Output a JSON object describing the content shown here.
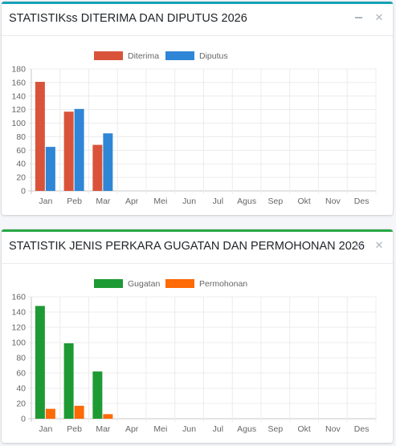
{
  "cards": [
    {
      "title": "STATISTIKss DITERIMA DAN DIPUTUS 2026",
      "accent": "#17a2b8",
      "tools": {
        "collapse_icon": "minus-icon",
        "remove_icon": "close-icon"
      }
    },
    {
      "title": "STATISTIK JENIS PERKARA GUGATAN DAN PERMOHONAN 2026",
      "accent": "#28a745",
      "tools": {
        "collapse_icon": "minus-icon",
        "remove_icon": "close-icon"
      }
    }
  ],
  "chart_data": [
    {
      "type": "bar",
      "title": "STATISTIKss DITERIMA DAN DIPUTUS 2026",
      "categories": [
        "Jan",
        "Peb",
        "Mar",
        "Apr",
        "Mei",
        "Jun",
        "Jul",
        "Agus",
        "Sep",
        "Okt",
        "Nov",
        "Des"
      ],
      "series": [
        {
          "name": "Diterima",
          "color": "#d9533b",
          "values": [
            161,
            117,
            68,
            0,
            0,
            0,
            0,
            0,
            0,
            0,
            0,
            0
          ]
        },
        {
          "name": "Diputus",
          "color": "#2f86d6",
          "values": [
            65,
            121,
            85,
            0,
            0,
            0,
            0,
            0,
            0,
            0,
            0,
            0
          ]
        }
      ],
      "ylim": [
        0,
        180
      ],
      "yticks": [
        0,
        20,
        40,
        60,
        80,
        100,
        120,
        140,
        160,
        180
      ],
      "grid": true,
      "legend": "top-center"
    },
    {
      "type": "bar",
      "title": "STATISTIK JENIS PERKARA GUGATAN DAN PERMOHONAN 2026",
      "categories": [
        "Jan",
        "Peb",
        "Mar",
        "Apr",
        "Mei",
        "Jun",
        "Jul",
        "Agus",
        "Sep",
        "Okt",
        "Nov",
        "Des"
      ],
      "series": [
        {
          "name": "Gugatan",
          "color": "#1e9a34",
          "values": [
            148,
            99,
            62,
            0,
            0,
            0,
            0,
            0,
            0,
            0,
            0,
            0
          ]
        },
        {
          "name": "Permohonan",
          "color": "#fd6a06",
          "values": [
            13,
            17,
            6,
            0,
            0,
            0,
            0,
            0,
            0,
            0,
            0,
            0
          ]
        }
      ],
      "ylim": [
        0,
        160
      ],
      "yticks": [
        0,
        20,
        40,
        60,
        80,
        100,
        120,
        140,
        160
      ],
      "grid": true,
      "legend": "top-center"
    }
  ]
}
